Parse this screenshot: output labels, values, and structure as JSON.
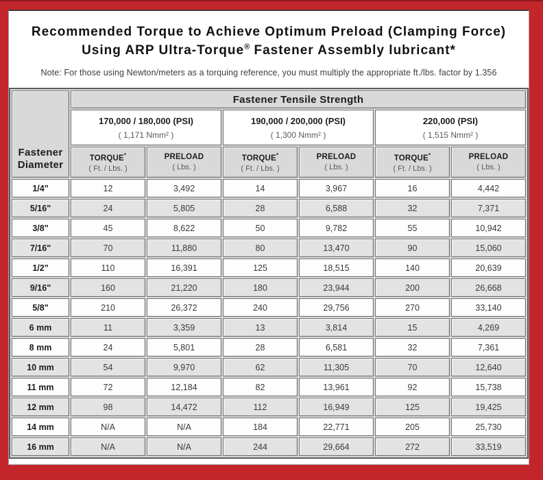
{
  "colors": {
    "frame_red": "#c2262b",
    "frame_top_edge": "#8f181d",
    "row_shade_gray": "#e3e3e3",
    "header_gray": "#d9d9d9",
    "cell_border": "#6e6e6e"
  },
  "title": {
    "line1": "Recommended Torque to Achieve Optimum Preload (Clamping Force)",
    "line2_main": "Using ARP Ultra-Torque",
    "line2_reg": "®",
    "line2_tail": " Fastener Assembly lubricant*"
  },
  "note": "Note: For those using Newton/meters as a torquing reference, you must multiply the appropriate ft./lbs. factor by 1.356",
  "table": {
    "corner": {
      "line1": "Fastener",
      "line2": "Diameter"
    },
    "tensile_header": "Fastener Tensile Strength",
    "groups": [
      {
        "psi": "170,000 / 180,000 (PSI)",
        "nmm": "( 1,171 Nmm² )"
      },
      {
        "psi": "190,000 / 200,000 (PSI)",
        "nmm": "( 1,300 Nmm² )"
      },
      {
        "psi": "220,000 (PSI)",
        "nmm": "( 1,515 Nmm² )"
      }
    ],
    "subheaders": {
      "torque": "TORQUE",
      "torque_mark": "*",
      "torque_unit": "( Ft. / Lbs. )",
      "preload": "PRELOAD",
      "preload_unit": "( Lbs. )"
    },
    "rows": [
      {
        "dia": "1/4\"",
        "values": [
          "12",
          "3,492",
          "14",
          "3,967",
          "16",
          "4,442"
        ]
      },
      {
        "dia": "5/16\"",
        "values": [
          "24",
          "5,805",
          "28",
          "6,588",
          "32",
          "7,371"
        ]
      },
      {
        "dia": "3/8\"",
        "values": [
          "45",
          "8,622",
          "50",
          "9,782",
          "55",
          "10,942"
        ]
      },
      {
        "dia": "7/16\"",
        "values": [
          "70",
          "11,880",
          "80",
          "13,470",
          "90",
          "15,060"
        ]
      },
      {
        "dia": "1/2\"",
        "values": [
          "110",
          "16,391",
          "125",
          "18,515",
          "140",
          "20,639"
        ]
      },
      {
        "dia": "9/16\"",
        "values": [
          "160",
          "21,220",
          "180",
          "23,944",
          "200",
          "26,668"
        ]
      },
      {
        "dia": "5/8\"",
        "values": [
          "210",
          "26,372",
          "240",
          "29,756",
          "270",
          "33,140"
        ]
      },
      {
        "dia": "6 mm",
        "values": [
          "11",
          "3,359",
          "13",
          "3,814",
          "15",
          "4,269"
        ]
      },
      {
        "dia": "8 mm",
        "values": [
          "24",
          "5,801",
          "28",
          "6,581",
          "32",
          "7,361"
        ]
      },
      {
        "dia": "10 mm",
        "values": [
          "54",
          "9,970",
          "62",
          "11,305",
          "70",
          "12,640"
        ]
      },
      {
        "dia": "11 mm",
        "values": [
          "72",
          "12,184",
          "82",
          "13,961",
          "92",
          "15,738"
        ]
      },
      {
        "dia": "12 mm",
        "values": [
          "98",
          "14,472",
          "112",
          "16,949",
          "125",
          "19,425"
        ]
      },
      {
        "dia": "14 mm",
        "values": [
          "N/A",
          "N/A",
          "184",
          "22,771",
          "205",
          "25,730"
        ]
      },
      {
        "dia": "16 mm",
        "values": [
          "N/A",
          "N/A",
          "244",
          "29,664",
          "272",
          "33,519"
        ]
      }
    ]
  }
}
